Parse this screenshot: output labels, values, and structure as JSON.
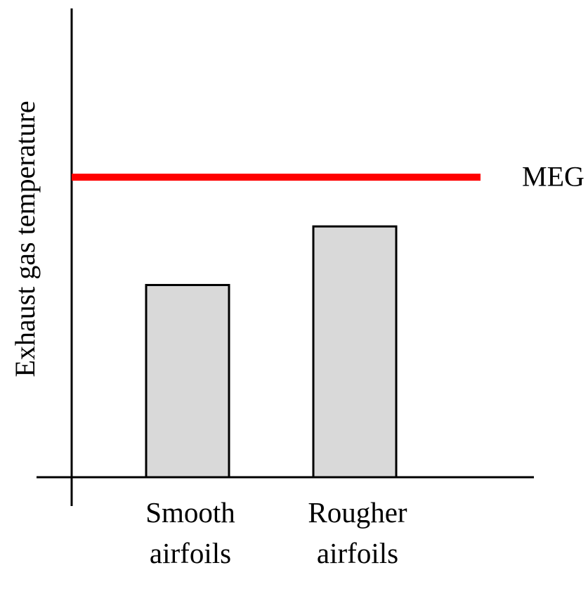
{
  "chart_data": {
    "type": "bar",
    "y_label": "Exhaust gas temperature",
    "categories": [
      "Smooth\nairfoils",
      "Rougher\nairfoils"
    ],
    "values": [
      41,
      53.5
    ],
    "color": "#d9d9d9",
    "ylim": [
      0,
      100
    ],
    "reference_line": {
      "label": "MEG",
      "value": 64,
      "color": "#ff0000"
    }
  }
}
